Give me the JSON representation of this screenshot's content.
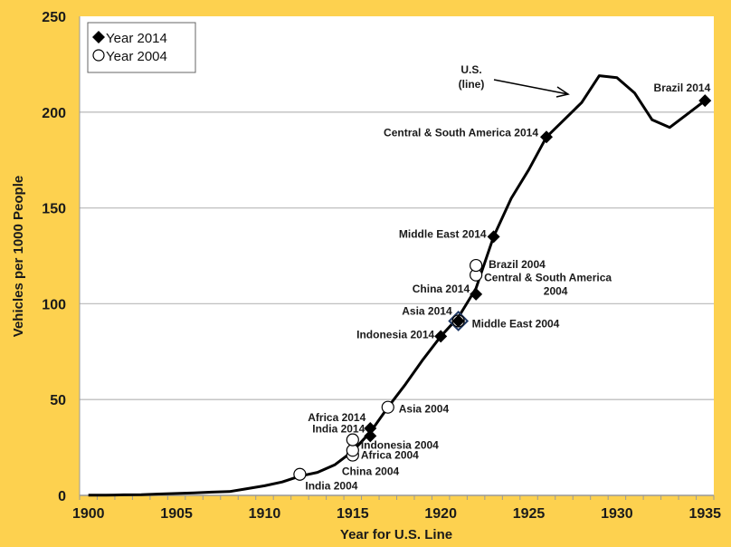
{
  "chart_data": {
    "type": "line",
    "title": "",
    "xlabel": "Year for U.S. Line",
    "ylabel": "Vehicles per 1000 People",
    "xlim": [
      1900,
      1935
    ],
    "ylim": [
      0,
      250
    ],
    "x_ticks": [
      "1900",
      "1905",
      "1910",
      "1915",
      "1920",
      "1925",
      "1930",
      "1935"
    ],
    "y_ticks": [
      "0",
      "50",
      "100",
      "150",
      "200",
      "250"
    ],
    "grid": true,
    "legend_position": "top-left",
    "legend": [
      {
        "label": "Year 2014",
        "marker": "filled-diamond"
      },
      {
        "label": "Year 2004",
        "marker": "open-circle"
      }
    ],
    "annotation": {
      "text_line1": "U.S.",
      "text_line2": "(line)"
    },
    "series": [
      {
        "name": "U.S.",
        "style": "line",
        "x": [
          1900,
          1901,
          1902,
          1903,
          1904,
          1905,
          1906,
          1907,
          1908,
          1909,
          1910,
          1911,
          1912,
          1913,
          1914,
          1915,
          1916,
          1917,
          1918,
          1919,
          1920,
          1921,
          1922,
          1923,
          1924,
          1925,
          1926,
          1927,
          1928,
          1929,
          1930,
          1931,
          1932,
          1933,
          1934,
          1935
        ],
        "y": [
          0.1,
          0.1,
          0.3,
          0.4,
          0.7,
          1,
          1.3,
          1.7,
          2,
          3.5,
          5,
          7,
          10,
          12,
          16,
          23,
          33,
          46,
          58,
          71,
          83,
          93,
          108,
          135,
          155,
          170,
          187,
          196,
          205,
          219,
          218,
          210,
          196,
          192,
          199,
          206
        ]
      },
      {
        "name": "Year 2014",
        "style": "filled-diamond",
        "points": [
          {
            "label": "Africa 2014",
            "x": 1916,
            "y": 35
          },
          {
            "label": "India 2014",
            "x": 1916,
            "y": 31
          },
          {
            "label": "Indonesia 2014",
            "x": 1920,
            "y": 83
          },
          {
            "label": "Asia 2014",
            "x": 1921,
            "y": 91
          },
          {
            "label": "China 2014",
            "x": 1922,
            "y": 105
          },
          {
            "label": "Middle East 2014",
            "x": 1923,
            "y": 135
          },
          {
            "label": "Central & South America 2014",
            "x": 1926,
            "y": 187
          },
          {
            "label": "Brazil 2014",
            "x": 1935,
            "y": 206
          }
        ]
      },
      {
        "name": "Year 2004",
        "style": "open-circle",
        "points": [
          {
            "label": "India 2004",
            "x": 1912,
            "y": 11
          },
          {
            "label": "China 2004",
            "x": 1915,
            "y": 21
          },
          {
            "label": "Africa 2004",
            "x": 1915,
            "y": 23.5
          },
          {
            "label": "Indonesia 2004",
            "x": 1915,
            "y": 29
          },
          {
            "label": "Asia 2004",
            "x": 1917,
            "y": 46
          },
          {
            "label": "Middle East 2004",
            "x": 1921,
            "y": 91
          },
          {
            "label": "Central & South America 2004",
            "x": 1922,
            "y": 115
          },
          {
            "label": "Brazil 2004",
            "x": 1922,
            "y": 120
          }
        ]
      }
    ],
    "colors": {
      "background": "#FDD14F",
      "plot": "#FFFFFF",
      "grid": "#BFBFBF",
      "line": "#000000",
      "highlight": "#1F3864"
    }
  }
}
